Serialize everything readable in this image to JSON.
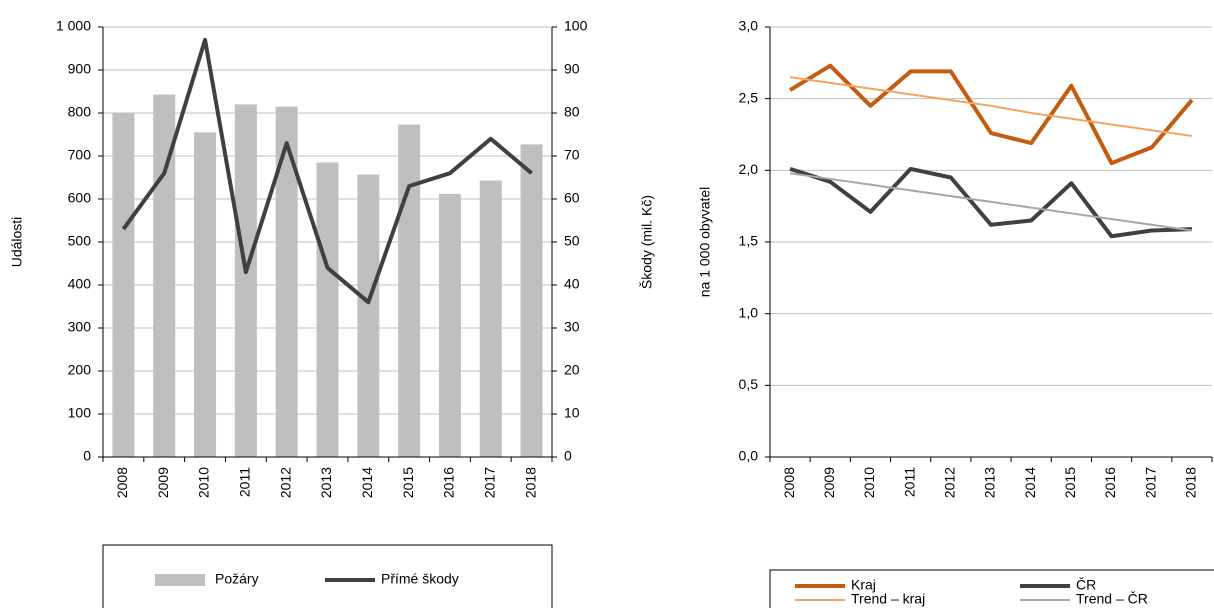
{
  "chart_data": [
    {
      "type": "combo",
      "categories": [
        "2008",
        "2009",
        "2010",
        "2011",
        "2012",
        "2013",
        "2014",
        "2015",
        "2016",
        "2017",
        "2018"
      ],
      "y_label": "Události",
      "y2_label": "Škody (mil. Kč)",
      "ylim": [
        0,
        1000
      ],
      "yticks": [
        0,
        100,
        200,
        300,
        400,
        500,
        600,
        700,
        800,
        900,
        {
          "value": 1000,
          "label": "1 000"
        }
      ],
      "y2lim": [
        0,
        100
      ],
      "y2ticks": [
        0,
        10,
        20,
        30,
        40,
        50,
        60,
        70,
        80,
        90,
        100
      ],
      "grid": true,
      "series": [
        {
          "name": "Požáry",
          "color": "#bfbfbf",
          "values": [
            800,
            843,
            755,
            820,
            815,
            685,
            657,
            773,
            612,
            643,
            727
          ]
        },
        {
          "name": "Přímé škody",
          "color": "#404040",
          "axis": "y2",
          "values": [
            53,
            66,
            97,
            43,
            73,
            44,
            36,
            63,
            66,
            74,
            66
          ]
        }
      ]
    },
    {
      "type": "line",
      "categories": [
        "2008",
        "2009",
        "2010",
        "2011",
        "2012",
        "2013",
        "2014",
        "2015",
        "2016",
        "2017",
        "2018"
      ],
      "y_label": "na 1 000 obyvatel",
      "ylim": [
        0,
        3
      ],
      "yticks": [
        {
          "value": 0,
          "label": "0,0"
        },
        {
          "value": 0.5,
          "label": "0,5"
        },
        {
          "value": 1,
          "label": "1,0"
        },
        {
          "value": 1.5,
          "label": "1,5"
        },
        {
          "value": 2,
          "label": "2,0"
        },
        {
          "value": 2.5,
          "label": "2,5"
        },
        {
          "value": 3,
          "label": "3,0"
        }
      ],
      "grid": true,
      "series": [
        {
          "name": "Kraj",
          "color": "#c55a11",
          "values": [
            2.56,
            2.73,
            2.45,
            2.69,
            2.69,
            2.26,
            2.19,
            2.59,
            2.05,
            2.16,
            2.49
          ]
        },
        {
          "name": "ČR",
          "color": "#404040",
          "values": [
            2.01,
            1.92,
            1.71,
            2.01,
            1.95,
            1.62,
            1.65,
            1.91,
            1.54,
            1.58,
            1.59
          ]
        },
        {
          "name": "Trend – kraj",
          "color": "#f4a460",
          "values": [
            2.65,
            2.61,
            2.57,
            2.53,
            2.49,
            2.45,
            2.4,
            2.36,
            2.32,
            2.28,
            2.24
          ]
        },
        {
          "name": "Trend – ČR",
          "color": "#a6a6a6",
          "values": [
            1.98,
            1.94,
            1.9,
            1.86,
            1.82,
            1.78,
            1.74,
            1.7,
            1.66,
            1.62,
            1.58
          ]
        }
      ]
    }
  ]
}
